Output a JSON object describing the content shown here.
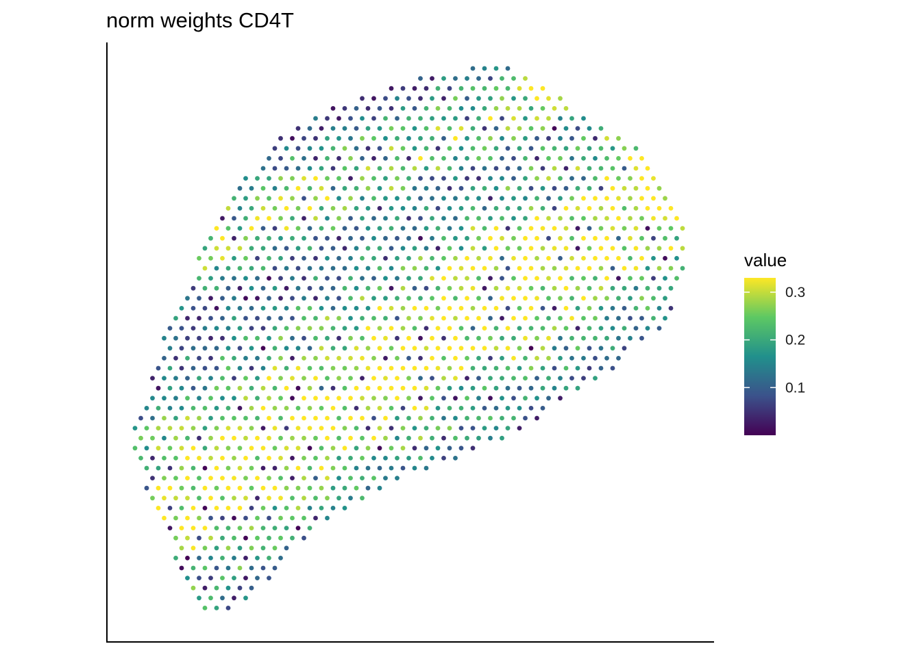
{
  "chart_data": {
    "type": "scatter",
    "title": "norm weights CD4T",
    "xlabel": "",
    "ylabel": "",
    "legend": {
      "title": "value",
      "position": "right",
      "ticks": [
        "0.1",
        "0.2",
        "0.3"
      ],
      "tick_values": [
        0.1,
        0.2,
        0.3
      ],
      "range": [
        0.0,
        0.33
      ],
      "colormap": "viridis",
      "colors": [
        "#440154",
        "#3b528b",
        "#21908c",
        "#5dc863",
        "#fde725"
      ]
    },
    "grid": false,
    "axes": "left and bottom lines only, no ticks",
    "point_layout": "hexagonal spot grid (spatial transcriptomics), one point per spot, value mapped to color"
  }
}
